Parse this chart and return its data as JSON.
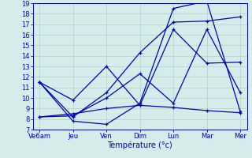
{
  "x_labels": [
    "Ve6am",
    "Jeu",
    "Ven",
    "Dim",
    "Lun",
    "Mar",
    "Mer"
  ],
  "x_positions": [
    0,
    1,
    2,
    3,
    4,
    5,
    6
  ],
  "ylim": [
    7,
    19
  ],
  "yticks": [
    7,
    8,
    9,
    10,
    11,
    12,
    13,
    14,
    15,
    16,
    17,
    18,
    19
  ],
  "xlabel": "Température (°c)",
  "background_color": "#d4ecea",
  "grid_color": "#b0d0ce",
  "line_color": "#0000bb",
  "lines": [
    [
      11.5,
      7.8,
      7.5,
      9.5,
      18.5,
      19.2,
      8.7
    ],
    [
      11.5,
      8.2,
      10.5,
      14.3,
      17.2,
      17.3,
      17.7
    ],
    [
      11.5,
      9.8,
      13.0,
      9.3,
      16.5,
      13.3,
      13.4
    ],
    [
      8.2,
      8.3,
      10.0,
      12.3,
      9.5,
      16.5,
      10.5
    ],
    [
      8.2,
      8.5,
      9.0,
      9.3,
      9.1,
      8.8,
      8.6
    ]
  ],
  "axis_fontsize": 6.5,
  "tick_fontsize": 6.0,
  "xlabel_fontsize": 7.0
}
